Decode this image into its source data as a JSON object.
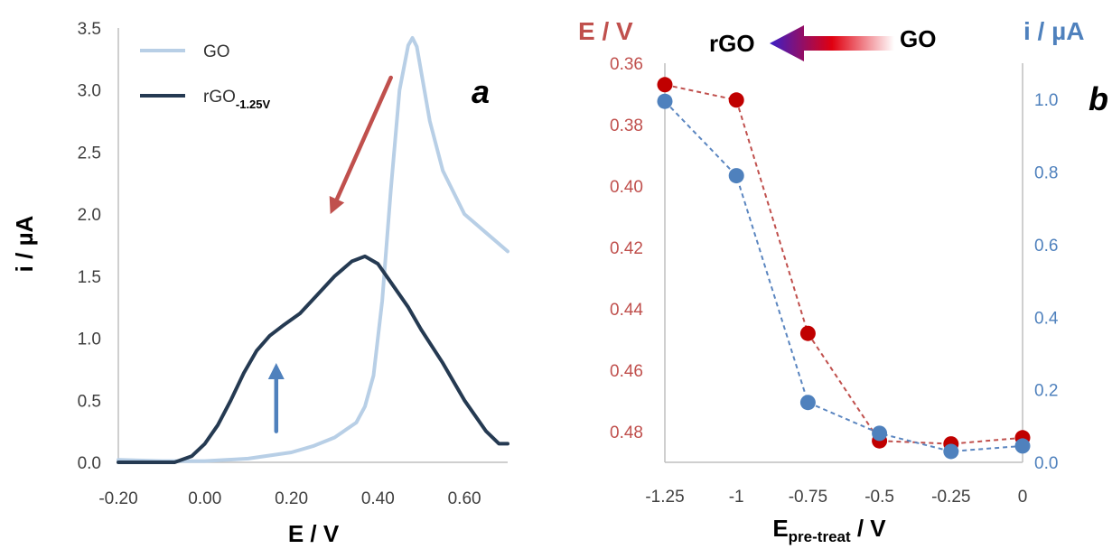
{
  "chart_data": [
    {
      "panel": "a",
      "type": "line",
      "xlabel": "E / V",
      "ylabel": "i / µA",
      "xlim": [
        -0.2,
        0.7
      ],
      "ylim": [
        0,
        3.5
      ],
      "xticks": [
        "-0.20",
        "0.00",
        "0.20",
        "0.40",
        "0.60"
      ],
      "yticks": [
        "0.0",
        "0.5",
        "1.0",
        "1.5",
        "2.0",
        "2.5",
        "3.0",
        "3.5"
      ],
      "legend_position": "top-left",
      "grid": false,
      "series": [
        {
          "name": "GO",
          "color": "#b8cfe6",
          "x": [
            -0.2,
            -0.1,
            0.0,
            0.1,
            0.2,
            0.25,
            0.3,
            0.35,
            0.37,
            0.39,
            0.41,
            0.43,
            0.45,
            0.47,
            0.48,
            0.49,
            0.5,
            0.52,
            0.55,
            0.6,
            0.65,
            0.7
          ],
          "y": [
            0.02,
            0.01,
            0.01,
            0.03,
            0.08,
            0.13,
            0.2,
            0.32,
            0.45,
            0.7,
            1.3,
            2.2,
            3.0,
            3.36,
            3.42,
            3.35,
            3.15,
            2.75,
            2.35,
            2.0,
            1.85,
            1.7
          ]
        },
        {
          "name": "rGO",
          "subscript": "-1.25V",
          "color": "#253a52",
          "x": [
            -0.2,
            -0.1,
            -0.07,
            -0.03,
            0.0,
            0.03,
            0.06,
            0.09,
            0.12,
            0.15,
            0.18,
            0.22,
            0.26,
            0.3,
            0.34,
            0.37,
            0.4,
            0.43,
            0.47,
            0.5,
            0.55,
            0.6,
            0.65,
            0.68,
            0.7
          ],
          "y": [
            0.0,
            0.0,
            0.0,
            0.05,
            0.15,
            0.3,
            0.5,
            0.72,
            0.9,
            1.02,
            1.1,
            1.2,
            1.35,
            1.5,
            1.62,
            1.66,
            1.6,
            1.45,
            1.25,
            1.07,
            0.8,
            0.5,
            0.25,
            0.15,
            0.15
          ]
        }
      ],
      "annotations": [
        {
          "type": "arrow",
          "color": "#c0504d",
          "from": [
            0.43,
            3.1
          ],
          "to": [
            0.29,
            2.0
          ]
        },
        {
          "type": "arrow",
          "color": "#4f81bd",
          "from": [
            0.165,
            0.25
          ],
          "to": [
            0.165,
            0.8
          ]
        }
      ]
    },
    {
      "panel": "b",
      "type": "scatter",
      "xlabel": "E",
      "xlabel_subscript": "pre-treat",
      "xlabel_unit": " / V",
      "ylabel_left": "E / V",
      "ylabel_right": "i / µA",
      "left_axis_inverted": true,
      "ylim_left": [
        0.36,
        0.49
      ],
      "ylim_right": [
        0,
        1.1
      ],
      "xlim": [
        -1.25,
        0
      ],
      "xticks": [
        -1.25,
        -1,
        -0.75,
        -0.5,
        -0.25,
        0
      ],
      "xtick_labels": [
        "-1.25",
        "-1",
        "-0.75",
        "-0.5",
        "-0.25",
        "0"
      ],
      "yticks_left": [
        0.36,
        0.38,
        0.4,
        0.42,
        0.44,
        0.46,
        0.48
      ],
      "ytick_labels_left": [
        "0.36",
        "0.38",
        "0.40",
        "0.42",
        "0.44",
        "0.46",
        "0.48"
      ],
      "yticks_right": [
        0,
        0.2,
        0.4,
        0.6,
        0.8,
        1.0
      ],
      "ytick_labels_right": [
        "0.0",
        "0.2",
        "0.4",
        "0.6",
        "0.8",
        "1.0"
      ],
      "grid": false,
      "series": [
        {
          "axis": "left",
          "color": "#c00000",
          "x": [
            -1.25,
            -1,
            -0.75,
            -0.5,
            -0.25,
            0
          ],
          "y": [
            0.367,
            0.372,
            0.448,
            0.483,
            0.484,
            0.482
          ]
        },
        {
          "axis": "right",
          "color": "#4f81bd",
          "x": [
            -1.25,
            -1,
            -0.75,
            -0.5,
            -0.25,
            0
          ],
          "y": [
            0.995,
            0.79,
            0.165,
            0.08,
            0.03,
            0.045
          ]
        }
      ],
      "gradient_arrow": {
        "left_label": "rGO",
        "right_label": "GO",
        "colors": [
          "#3a1fc8",
          "#e00010",
          "#ffffff"
        ]
      }
    }
  ]
}
